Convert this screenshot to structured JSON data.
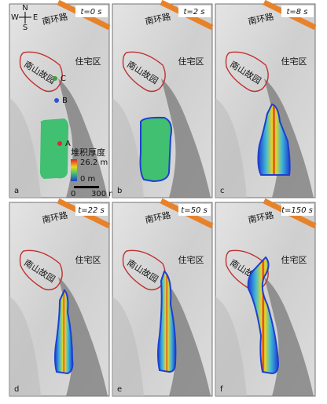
{
  "panels": [
    {
      "label": "a",
      "time": "t=0 s",
      "road": "南环路",
      "residential": "住宅区",
      "park": "南山故园"
    },
    {
      "label": "b",
      "time": "t=2 s",
      "road": "南环路",
      "residential": "住宅区",
      "park": "南山故园"
    },
    {
      "label": "c",
      "time": "t=8 s",
      "road": "南环路",
      "residential": "住宅区",
      "park": "南山故园"
    },
    {
      "label": "d",
      "time": "t=22 s",
      "road": "南环路",
      "residential": "住宅区",
      "park": "南山故园"
    },
    {
      "label": "e",
      "time": "t=50 s",
      "road": "南环路",
      "residential": "住宅区",
      "park": "南山故园"
    },
    {
      "label": "f",
      "time": "t=150 s",
      "road": "南环路",
      "residential": "住宅区",
      "park": "南山故园"
    }
  ],
  "points": [
    "A",
    "B",
    "C"
  ],
  "compass": {
    "n": "N",
    "s": "S",
    "w": "W",
    "e": "E"
  },
  "legend": {
    "title": "堆积厚度",
    "max": "26.2 m",
    "min": "0 m"
  },
  "scale": {
    "start": "0",
    "end": "300 m"
  }
}
